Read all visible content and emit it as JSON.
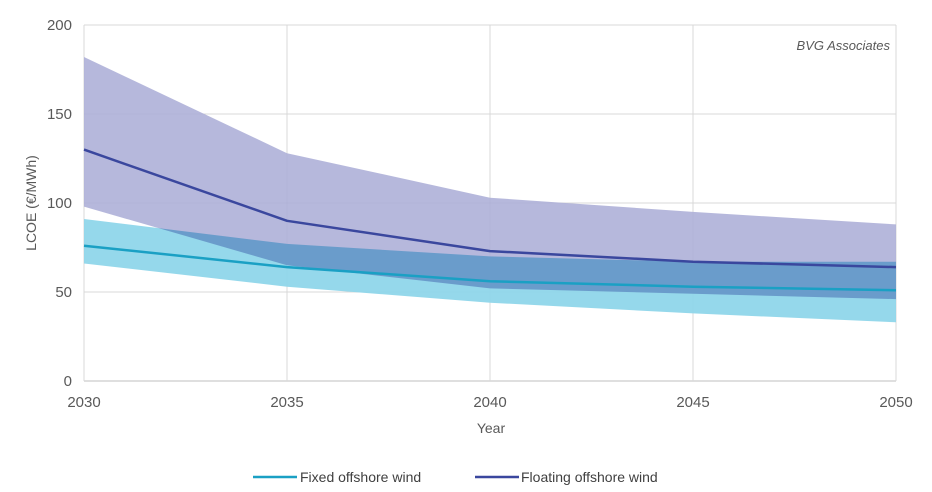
{
  "chart_data": {
    "type": "line",
    "title": "",
    "xlabel": "Year",
    "ylabel": "LCOE (€/MWh)",
    "annotation": "BVG Associates",
    "x": [
      2030,
      2035,
      2040,
      2045,
      2050
    ],
    "x_ticks": [
      "2030",
      "2035",
      "2040",
      "2045",
      "2050"
    ],
    "y_ticks": [
      "0",
      "50",
      "100",
      "150",
      "200"
    ],
    "xlim": [
      2030,
      2050
    ],
    "ylim": [
      0,
      200
    ],
    "grid": true,
    "legend_position": "bottom",
    "series": [
      {
        "name": "Fixed offshore wind",
        "color": "#1aa0c4",
        "band_color": "#8fd6ea",
        "values": [
          76,
          64,
          56,
          53,
          51
        ],
        "upper": [
          91,
          77,
          70,
          67,
          67
        ],
        "lower": [
          66,
          53,
          44,
          38,
          33
        ]
      },
      {
        "name": "Floating offshore wind",
        "color": "#3a479e",
        "band_color": "#a9acd6",
        "values": [
          130,
          90,
          73,
          67,
          64
        ],
        "upper": [
          182,
          128,
          103,
          95,
          88
        ],
        "lower": [
          98,
          65,
          52,
          49,
          46
        ]
      }
    ]
  }
}
